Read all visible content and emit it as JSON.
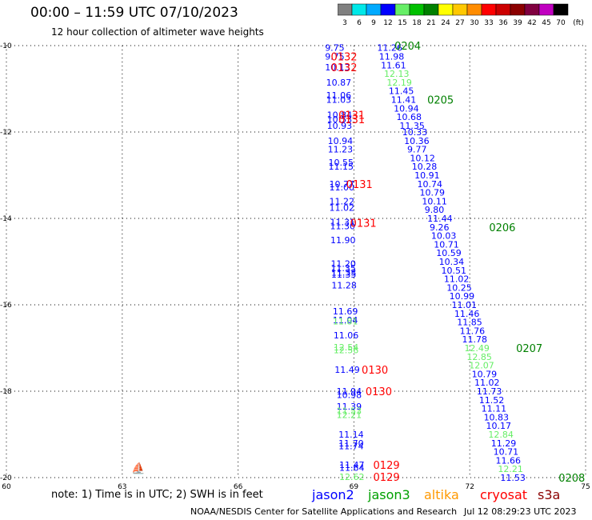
{
  "title": "00:00 – 11:59 UTC 07/10/2023",
  "subtitle": "12 hour collection of altimeter wave heights",
  "colorbar": {
    "labels": [
      "3",
      "6",
      "9",
      "12",
      "15",
      "18",
      "21",
      "24",
      "27",
      "30",
      "33",
      "36",
      "39",
      "42",
      "45",
      "70",
      "(ft)"
    ],
    "colors": [
      "#808080",
      "#00e8e8",
      "#00aaff",
      "#0000ff",
      "#66ee66",
      "#00c000",
      "#008000",
      "#ffff00",
      "#ffc800",
      "#ff8c00",
      "#ff0000",
      "#cc0000",
      "#8b0000",
      "#800040",
      "#c000c0",
      "#000000"
    ]
  },
  "note": "note: 1) Time is in UTC; 2) SWH is in feet",
  "legend": [
    {
      "name": "jason2",
      "color": "#0000ff"
    },
    {
      "name": "jason3",
      "color": "#00a000"
    },
    {
      "name": "altika",
      "color": "#ff9900"
    },
    {
      "name": "cryosat",
      "color": "#ff0000"
    },
    {
      "name": "s3a",
      "color": "#8b0000"
    }
  ],
  "footer_left": "NOAA/NESDIS Center for Satellite Applications and Research",
  "footer_right": "Jul 12 08:29:23 UTC 2023",
  "chart_data": {
    "type": "scatter",
    "xlim": [
      60,
      75
    ],
    "ylim": [
      -20,
      -10
    ],
    "xticks": [
      "60",
      "63",
      "66",
      "69",
      "72",
      "75"
    ],
    "yticks": [
      "-10",
      "-12",
      "-14",
      "-16",
      "-18",
      "-20"
    ],
    "grid": true,
    "points": [
      {
        "x": 68.25,
        "y": -10.05,
        "v": "9.75",
        "c": "#0000ff"
      },
      {
        "x": 68.25,
        "y": -10.25,
        "v": "9.75",
        "c": "#0000ff"
      },
      {
        "x": 68.25,
        "y": -10.5,
        "v": "10.13",
        "c": "#0000ff"
      },
      {
        "x": 68.28,
        "y": -10.85,
        "v": "10.87",
        "c": "#0000ff"
      },
      {
        "x": 68.28,
        "y": -11.15,
        "v": "11.06",
        "c": "#0000ff"
      },
      {
        "x": 68.28,
        "y": -11.25,
        "v": "11.03",
        "c": "#0000ff"
      },
      {
        "x": 68.3,
        "y": -11.6,
        "v": "10.84",
        "c": "#0000ff"
      },
      {
        "x": 68.3,
        "y": -11.7,
        "v": "10.53",
        "c": "#0000ff"
      },
      {
        "x": 68.3,
        "y": -11.85,
        "v": "10.93",
        "c": "#0000ff"
      },
      {
        "x": 68.32,
        "y": -12.2,
        "v": "10.94",
        "c": "#0000ff"
      },
      {
        "x": 68.32,
        "y": -12.4,
        "v": "11.23",
        "c": "#0000ff"
      },
      {
        "x": 68.34,
        "y": -12.7,
        "v": "10.55",
        "c": "#0000ff"
      },
      {
        "x": 68.34,
        "y": -12.8,
        "v": "11.15",
        "c": "#0000ff"
      },
      {
        "x": 68.36,
        "y": -13.2,
        "v": "10.77",
        "c": "#0000ff"
      },
      {
        "x": 68.36,
        "y": -13.28,
        "v": "11.00",
        "c": "#0000ff"
      },
      {
        "x": 68.36,
        "y": -13.6,
        "v": "11.22",
        "c": "#0000ff"
      },
      {
        "x": 68.36,
        "y": -13.75,
        "v": "11.02",
        "c": "#0000ff"
      },
      {
        "x": 68.38,
        "y": -14.08,
        "v": "11.31",
        "c": "#0000ff"
      },
      {
        "x": 68.38,
        "y": -14.18,
        "v": "11.30",
        "c": "#0000ff"
      },
      {
        "x": 68.39,
        "y": -14.5,
        "v": "11.90",
        "c": "#0000ff"
      },
      {
        "x": 68.4,
        "y": -15.05,
        "v": "11.20",
        "c": "#0000ff"
      },
      {
        "x": 68.4,
        "y": -15.15,
        "v": "11.35",
        "c": "#0000ff"
      },
      {
        "x": 68.41,
        "y": -15.25,
        "v": "11.33",
        "c": "#0000ff"
      },
      {
        "x": 68.41,
        "y": -15.3,
        "v": "11.35",
        "c": "#0000ff"
      },
      {
        "x": 68.42,
        "y": -15.55,
        "v": "11.28",
        "c": "#0000ff"
      },
      {
        "x": 68.45,
        "y": -16.15,
        "v": "11.69",
        "c": "#0000ff"
      },
      {
        "x": 68.45,
        "y": -16.35,
        "v": "11.04",
        "c": "#0000ff"
      },
      {
        "x": 68.45,
        "y": -16.38,
        "v": "11.81",
        "c": "#66ee66"
      },
      {
        "x": 68.47,
        "y": -16.7,
        "v": "11.06",
        "c": "#0000ff"
      },
      {
        "x": 68.47,
        "y": -16.98,
        "v": "12.54",
        "c": "#66ee66"
      },
      {
        "x": 68.47,
        "y": -17.05,
        "v": "12.56",
        "c": "#66ee66"
      },
      {
        "x": 68.5,
        "y": -17.5,
        "v": "11.49",
        "c": "#0000ff"
      },
      {
        "x": 68.55,
        "y": -18.0,
        "v": "11.94",
        "c": "#0000ff"
      },
      {
        "x": 68.55,
        "y": -18.08,
        "v": "10.98",
        "c": "#0000ff"
      },
      {
        "x": 68.55,
        "y": -18.35,
        "v": "11.39",
        "c": "#0000ff"
      },
      {
        "x": 68.55,
        "y": -18.45,
        "v": "11.53",
        "c": "#66ee66"
      },
      {
        "x": 68.55,
        "y": -18.55,
        "v": "12.21",
        "c": "#66ee66"
      },
      {
        "x": 68.6,
        "y": -19.0,
        "v": "11.14",
        "c": "#0000ff"
      },
      {
        "x": 68.6,
        "y": -19.2,
        "v": "11.70",
        "c": "#0000ff"
      },
      {
        "x": 68.6,
        "y": -19.27,
        "v": "11.74",
        "c": "#0000ff"
      },
      {
        "x": 68.62,
        "y": -19.7,
        "v": "11.47",
        "c": "#0000ff"
      },
      {
        "x": 68.62,
        "y": -19.77,
        "v": "11.64",
        "c": "#0000ff"
      },
      {
        "x": 68.62,
        "y": -19.98,
        "v": "12.62",
        "c": "#66ee66"
      },
      {
        "x": 69.6,
        "y": -10.05,
        "v": "11.26",
        "c": "#0000ff"
      },
      {
        "x": 69.65,
        "y": -10.25,
        "v": "11.98",
        "c": "#0000ff"
      },
      {
        "x": 69.7,
        "y": -10.45,
        "v": "11.61",
        "c": "#0000ff"
      },
      {
        "x": 69.78,
        "y": -10.65,
        "v": "12.13",
        "c": "#66ee66"
      },
      {
        "x": 69.85,
        "y": -10.85,
        "v": "12.19",
        "c": "#66ee66"
      },
      {
        "x": 69.9,
        "y": -11.05,
        "v": "11.45",
        "c": "#0000ff"
      },
      {
        "x": 69.96,
        "y": -11.25,
        "v": "11.41",
        "c": "#0000ff"
      },
      {
        "x": 70.03,
        "y": -11.45,
        "v": "10.94",
        "c": "#0000ff"
      },
      {
        "x": 70.1,
        "y": -11.65,
        "v": "10.68",
        "c": "#0000ff"
      },
      {
        "x": 70.18,
        "y": -11.85,
        "v": "11.35",
        "c": "#0000ff"
      },
      {
        "x": 70.25,
        "y": -12.0,
        "v": "10.33",
        "c": "#0000ff"
      },
      {
        "x": 70.3,
        "y": -12.2,
        "v": "10.36",
        "c": "#0000ff"
      },
      {
        "x": 70.38,
        "y": -12.4,
        "v": "9.77",
        "c": "#0000ff"
      },
      {
        "x": 70.45,
        "y": -12.6,
        "v": "10.12",
        "c": "#0000ff"
      },
      {
        "x": 70.5,
        "y": -12.8,
        "v": "10.28",
        "c": "#0000ff"
      },
      {
        "x": 70.57,
        "y": -13.0,
        "v": "10.91",
        "c": "#0000ff"
      },
      {
        "x": 70.64,
        "y": -13.2,
        "v": "10.74",
        "c": "#0000ff"
      },
      {
        "x": 70.7,
        "y": -13.4,
        "v": "10.79",
        "c": "#0000ff"
      },
      {
        "x": 70.76,
        "y": -13.6,
        "v": "10.11",
        "c": "#0000ff"
      },
      {
        "x": 70.83,
        "y": -13.8,
        "v": "9.80",
        "c": "#0000ff"
      },
      {
        "x": 70.9,
        "y": -14.0,
        "v": "11.44",
        "c": "#0000ff"
      },
      {
        "x": 70.96,
        "y": -14.2,
        "v": "9.26",
        "c": "#0000ff"
      },
      {
        "x": 71.0,
        "y": -14.4,
        "v": "10.03",
        "c": "#0000ff"
      },
      {
        "x": 71.07,
        "y": -14.6,
        "v": "10.71",
        "c": "#0000ff"
      },
      {
        "x": 71.13,
        "y": -14.8,
        "v": "10.59",
        "c": "#0000ff"
      },
      {
        "x": 71.2,
        "y": -15.0,
        "v": "10.34",
        "c": "#0000ff"
      },
      {
        "x": 71.26,
        "y": -15.2,
        "v": "10.51",
        "c": "#0000ff"
      },
      {
        "x": 71.33,
        "y": -15.4,
        "v": "11.02",
        "c": "#0000ff"
      },
      {
        "x": 71.4,
        "y": -15.6,
        "v": "10.25",
        "c": "#0000ff"
      },
      {
        "x": 71.47,
        "y": -15.8,
        "v": "10.99",
        "c": "#0000ff"
      },
      {
        "x": 71.53,
        "y": -16.0,
        "v": "11.01",
        "c": "#0000ff"
      },
      {
        "x": 71.6,
        "y": -16.2,
        "v": "11.46",
        "c": "#0000ff"
      },
      {
        "x": 71.67,
        "y": -16.4,
        "v": "11.85",
        "c": "#0000ff"
      },
      {
        "x": 71.74,
        "y": -16.6,
        "v": "11.76",
        "c": "#0000ff"
      },
      {
        "x": 71.8,
        "y": -16.8,
        "v": "11.78",
        "c": "#0000ff"
      },
      {
        "x": 71.86,
        "y": -17.0,
        "v": "12.49",
        "c": "#66ee66"
      },
      {
        "x": 71.92,
        "y": -17.2,
        "v": "12.85",
        "c": "#66ee66"
      },
      {
        "x": 71.98,
        "y": -17.4,
        "v": "12.07",
        "c": "#66ee66"
      },
      {
        "x": 72.05,
        "y": -17.6,
        "v": "10.79",
        "c": "#0000ff"
      },
      {
        "x": 72.12,
        "y": -17.8,
        "v": "11.02",
        "c": "#0000ff"
      },
      {
        "x": 72.18,
        "y": -18.0,
        "v": "11.73",
        "c": "#0000ff"
      },
      {
        "x": 72.24,
        "y": -18.2,
        "v": "11.52",
        "c": "#0000ff"
      },
      {
        "x": 72.3,
        "y": -18.4,
        "v": "11.11",
        "c": "#0000ff"
      },
      {
        "x": 72.36,
        "y": -18.6,
        "v": "10.83",
        "c": "#0000ff"
      },
      {
        "x": 72.42,
        "y": -18.8,
        "v": "10.17",
        "c": "#0000ff"
      },
      {
        "x": 72.48,
        "y": -19.0,
        "v": "12.84",
        "c": "#66ee66"
      },
      {
        "x": 72.55,
        "y": -19.2,
        "v": "11.29",
        "c": "#0000ff"
      },
      {
        "x": 72.61,
        "y": -19.4,
        "v": "10.71",
        "c": "#0000ff"
      },
      {
        "x": 72.67,
        "y": -19.6,
        "v": "11.66",
        "c": "#0000ff"
      },
      {
        "x": 72.73,
        "y": -19.8,
        "v": "12.21",
        "c": "#66ee66"
      },
      {
        "x": 72.79,
        "y": -20.0,
        "v": "11.53",
        "c": "#0000ff"
      }
    ],
    "time_labels": [
      {
        "x": 68.4,
        "y": -10.25,
        "t": "0132",
        "c": "#ff0000"
      },
      {
        "x": 68.4,
        "y": -10.5,
        "t": "0132",
        "c": "#ff0000"
      },
      {
        "x": 68.6,
        "y": -11.6,
        "t": "0131",
        "c": "#ff0000"
      },
      {
        "x": 68.6,
        "y": -11.7,
        "t": "0131",
        "c": "#ff0000"
      },
      {
        "x": 68.8,
        "y": -13.2,
        "t": "0131",
        "c": "#ff0000"
      },
      {
        "x": 68.9,
        "y": -14.1,
        "t": "0131",
        "c": "#ff0000"
      },
      {
        "x": 69.2,
        "y": -17.5,
        "t": "0130",
        "c": "#ff0000"
      },
      {
        "x": 69.3,
        "y": -18.0,
        "t": "0130",
        "c": "#ff0000"
      },
      {
        "x": 69.5,
        "y": -19.7,
        "t": "0129",
        "c": "#ff0000"
      },
      {
        "x": 69.5,
        "y": -19.98,
        "t": "0129",
        "c": "#ff0000"
      },
      {
        "x": 70.05,
        "y": -10.0,
        "t": "0204",
        "c": "#008000"
      },
      {
        "x": 70.9,
        "y": -11.25,
        "t": "0205",
        "c": "#008000"
      },
      {
        "x": 72.5,
        "y": -14.2,
        "t": "0206",
        "c": "#008000"
      },
      {
        "x": 73.2,
        "y": -17.0,
        "t": "0207",
        "c": "#008000"
      },
      {
        "x": 74.3,
        "y": -20.0,
        "t": "0208",
        "c": "#008000"
      }
    ]
  }
}
